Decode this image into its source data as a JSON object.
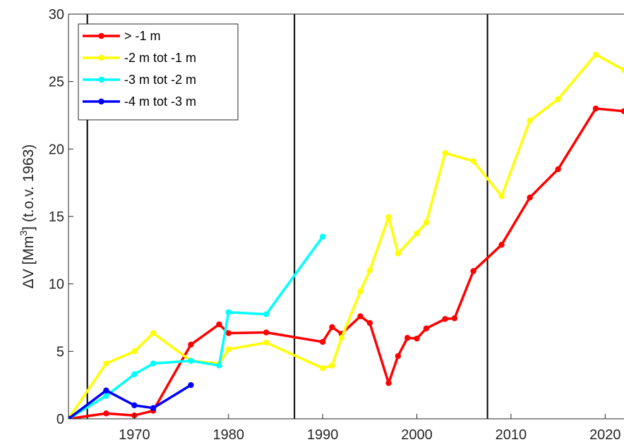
{
  "chart_data": {
    "type": "line",
    "xlim": [
      1963,
      2022
    ],
    "ylim": [
      0,
      30
    ],
    "xticks": [
      1970,
      1980,
      1990,
      2000,
      2010,
      2020
    ],
    "yticks": [
      0,
      5,
      10,
      15,
      20,
      25,
      30
    ],
    "xlabel": "",
    "ylabel_main": "ΔV [Mm",
    "ylabel_sup": "3",
    "ylabel_tail": "] (t.o.v. 1963)",
    "grid": false,
    "legend_position": "top-left",
    "vertical_lines": [
      1965,
      1987,
      2007.5
    ],
    "series": [
      {
        "name": "> -1 m",
        "color": "#ff0000",
        "x": [
          1963,
          1967,
          1970,
          1972,
          1976,
          1979,
          1980,
          1984,
          1990,
          1991,
          1992,
          1994,
          1995,
          1997,
          1998,
          1999,
          2000,
          2001,
          2003,
          2004,
          2006,
          2009,
          2012,
          2015,
          2019,
          2022
        ],
        "y": [
          0,
          0.4,
          0.25,
          0.6,
          5.5,
          7.0,
          6.35,
          6.4,
          5.7,
          6.8,
          6.3,
          7.6,
          7.1,
          2.65,
          4.65,
          6.0,
          5.95,
          6.7,
          7.4,
          7.45,
          10.95,
          12.9,
          16.4,
          18.5,
          23.0,
          22.8
        ]
      },
      {
        "name": "-2 m tot -1 m",
        "color": "#ffff00",
        "x": [
          1963,
          1967,
          1970,
          1972,
          1976,
          1979,
          1980,
          1984,
          1990,
          1991,
          1992,
          1994,
          1995,
          1997,
          1998,
          2000,
          2001,
          2003,
          2006,
          2009,
          2012,
          2015,
          2019,
          2022
        ],
        "y": [
          0,
          4.1,
          5.0,
          6.35,
          4.3,
          4.1,
          5.15,
          5.65,
          3.75,
          3.95,
          6.0,
          9.45,
          11.0,
          14.95,
          12.25,
          13.75,
          14.55,
          19.7,
          19.1,
          16.5,
          22.1,
          23.7,
          27.0,
          25.85
        ]
      },
      {
        "name": "-3 m tot -2 m",
        "color": "#00ffff",
        "x": [
          1963,
          1967,
          1970,
          1972,
          1976,
          1979,
          1980,
          1984,
          1990
        ],
        "y": [
          0,
          1.7,
          3.3,
          4.1,
          4.3,
          3.95,
          7.9,
          7.75,
          13.5
        ]
      },
      {
        "name": "-4 m tot -3 m",
        "color": "#0000ff",
        "x": [
          1963,
          1967,
          1970,
          1972,
          1976
        ],
        "y": [
          0,
          2.1,
          1.0,
          0.8,
          2.5
        ]
      }
    ]
  }
}
